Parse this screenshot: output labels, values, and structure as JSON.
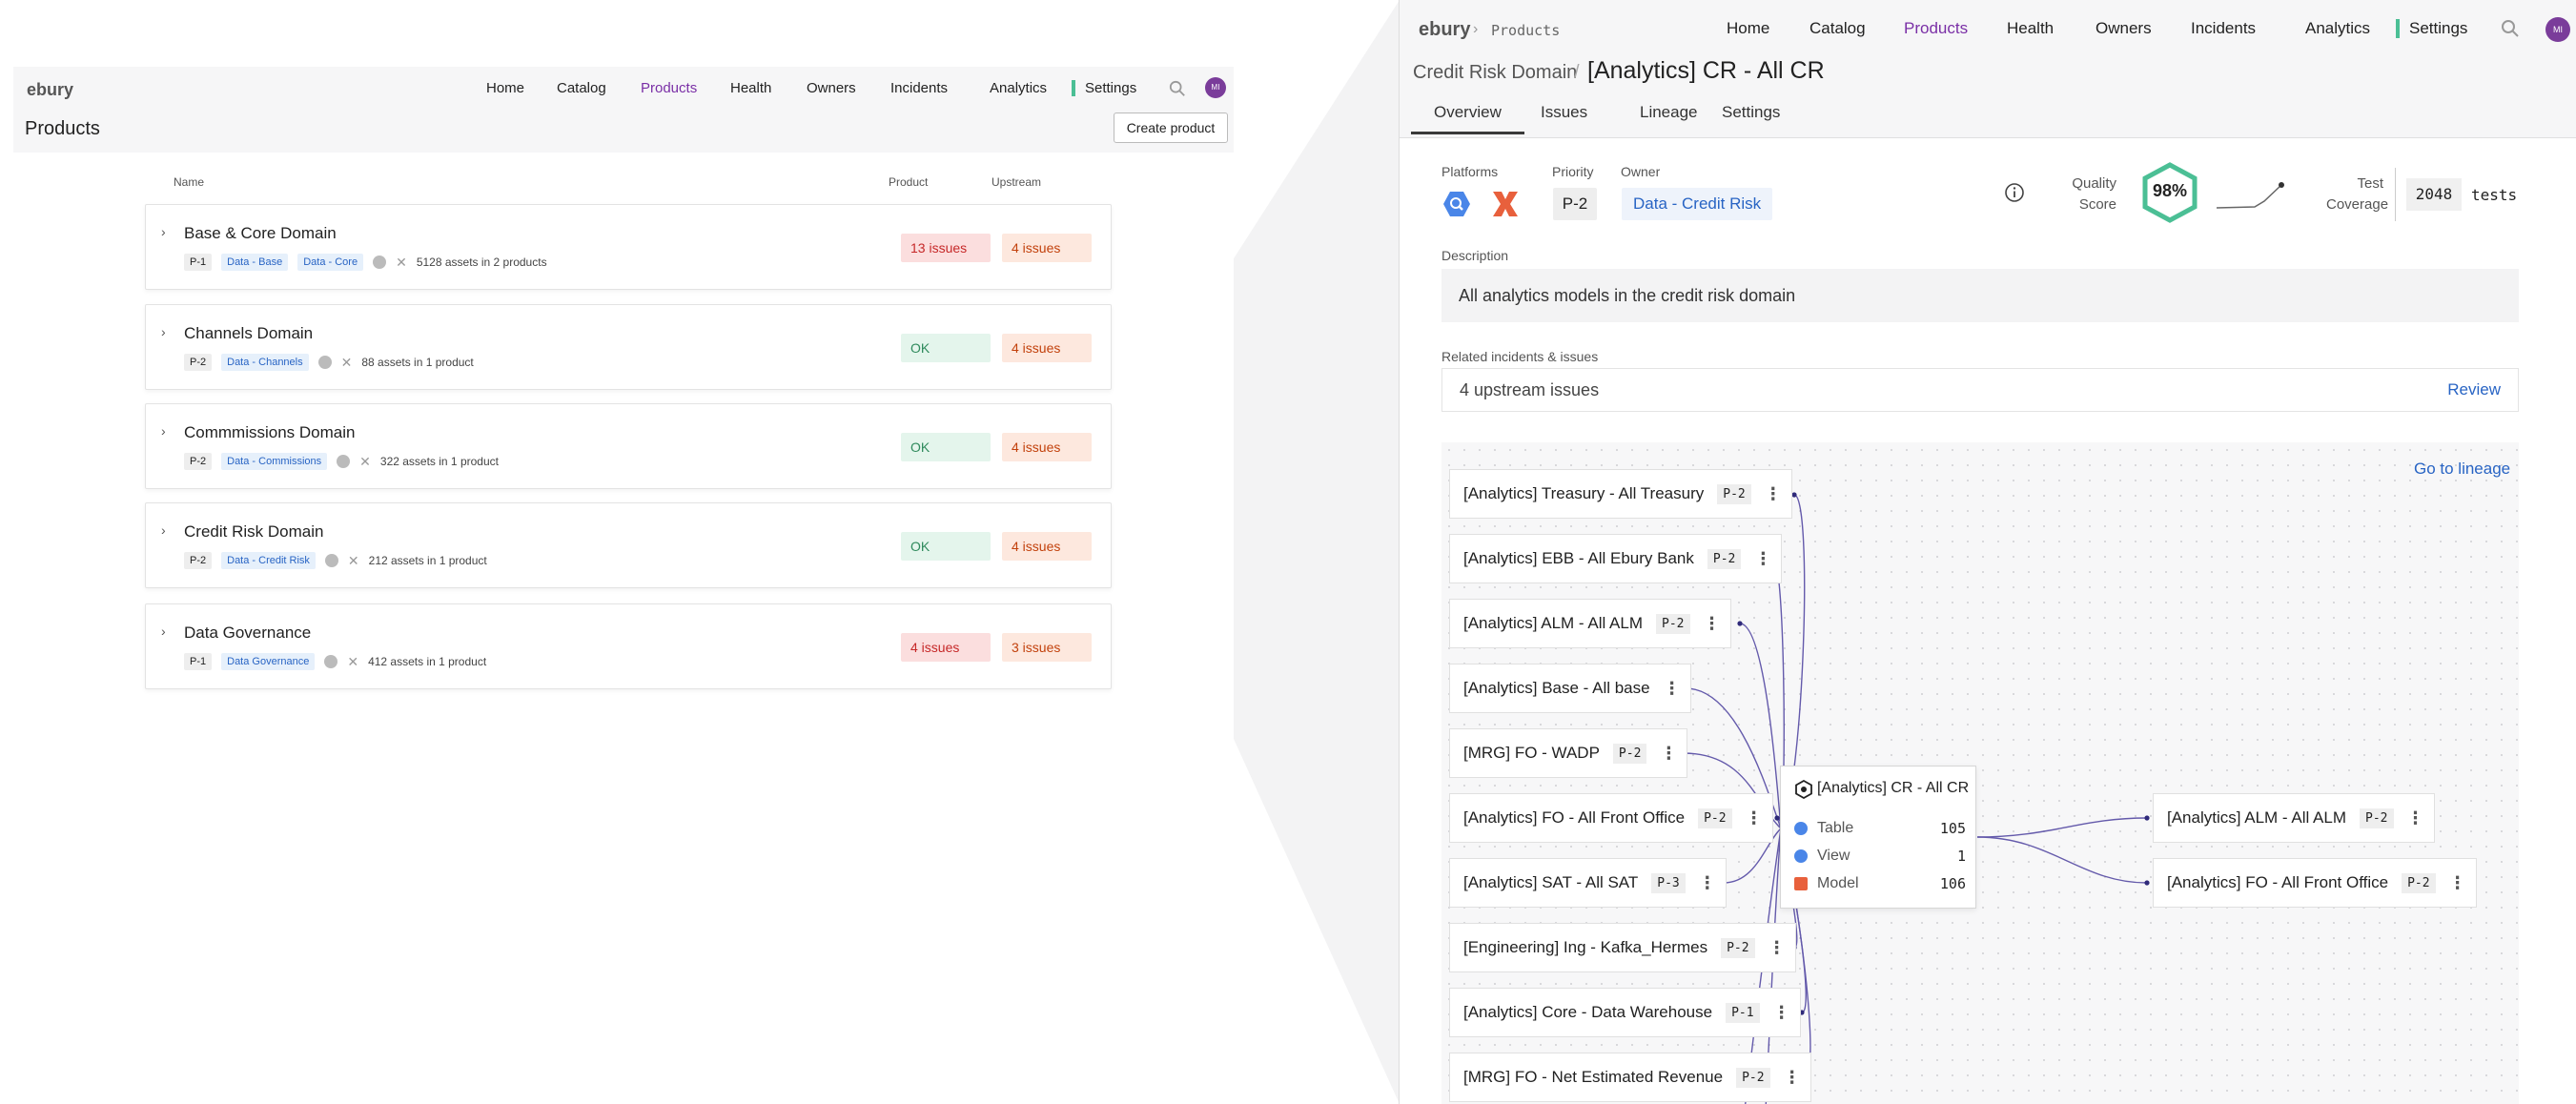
{
  "left": {
    "logo": "ebury",
    "nav": [
      {
        "label": "Home",
        "active": false
      },
      {
        "label": "Catalog",
        "active": false
      },
      {
        "label": "Products",
        "active": true
      },
      {
        "label": "Health",
        "active": false
      },
      {
        "label": "Owners",
        "active": false
      },
      {
        "label": "Incidents",
        "active": false
      },
      {
        "label": "Analytics",
        "active": false
      },
      {
        "label": "Settings",
        "active": false
      }
    ],
    "avatar": "MI",
    "page_title": "Products",
    "create_button": "Create product",
    "columns": {
      "name": "Name",
      "product": "Product",
      "upstream": "Upstream"
    },
    "products": [
      {
        "name": "Base & Core Domain",
        "priority": "P-1",
        "tags": [
          "Data - Base",
          "Data - Core"
        ],
        "assets": "5128 assets in 2 products",
        "product_status": "13 issues",
        "product_ok": false,
        "upstream": "4 issues"
      },
      {
        "name": "Channels Domain",
        "priority": "P-2",
        "tags": [
          "Data - Channels"
        ],
        "assets": "88 assets in 1 product",
        "product_status": "OK",
        "product_ok": true,
        "upstream": "4 issues"
      },
      {
        "name": "Commmissions Domain",
        "priority": "P-2",
        "tags": [
          "Data - Commissions"
        ],
        "assets": "322 assets in 1 product",
        "product_status": "OK",
        "product_ok": true,
        "upstream": "4 issues"
      },
      {
        "name": "Credit Risk Domain",
        "priority": "P-2",
        "tags": [
          "Data - Credit Risk"
        ],
        "assets": "212 assets in 1 product",
        "product_status": "OK",
        "product_ok": true,
        "upstream": "4 issues"
      },
      {
        "name": "Data Governance",
        "priority": "P-1",
        "tags": [
          "Data Governance"
        ],
        "assets": "412 assets in 1 product",
        "product_status": "4 issues",
        "product_ok": false,
        "upstream": "3 issues"
      }
    ]
  },
  "right": {
    "logo": "ebury",
    "breadcrumb": "Products",
    "nav": [
      {
        "label": "Home",
        "active": false
      },
      {
        "label": "Catalog",
        "active": false
      },
      {
        "label": "Products",
        "active": true
      },
      {
        "label": "Health",
        "active": false
      },
      {
        "label": "Owners",
        "active": false
      },
      {
        "label": "Incidents",
        "active": false
      },
      {
        "label": "Analytics",
        "active": false
      },
      {
        "label": "Settings",
        "active": false
      }
    ],
    "avatar": "MI",
    "domain_link": "Credit Risk Domain",
    "title": "[Analytics] CR - All CR",
    "tabs": [
      "Overview",
      "Issues",
      "Lineage",
      "Settings"
    ],
    "active_tab": "Overview",
    "platforms_label": "Platforms",
    "platform_icons": [
      "bigquery-icon",
      "dbt-icon"
    ],
    "priority_label": "Priority",
    "priority": "P-2",
    "owner_label": "Owner",
    "owner": "Data - Credit Risk",
    "quality_label_1": "Quality",
    "quality_label_2": "Score",
    "quality_score": "98%",
    "coverage_label_1": "Test",
    "coverage_label_2": "Coverage",
    "tests_count": "2048",
    "tests_unit": "tests",
    "description_label": "Description",
    "description": "All analytics models in the credit risk domain",
    "related_label": "Related incidents & issues",
    "related_text": "4 upstream issues",
    "review": "Review",
    "goto_lineage": "Go to lineage",
    "upstream_nodes": [
      {
        "name": "[Analytics] Treasury - All Treasury",
        "p": "P-2"
      },
      {
        "name": "[Analytics] EBB - All Ebury Bank",
        "p": "P-2"
      },
      {
        "name": "[Analytics] ALM - All ALM",
        "p": "P-2"
      },
      {
        "name": "[Analytics] Base - All base",
        "p": ""
      },
      {
        "name": "[MRG] FO - WADP",
        "p": "P-2"
      },
      {
        "name": "[Analytics] FO - All Front Office",
        "p": "P-2"
      },
      {
        "name": "[Analytics] SAT - All SAT",
        "p": "P-3"
      },
      {
        "name": "[Engineering] Ing - Kafka_Hermes",
        "p": "P-2"
      },
      {
        "name": "[Analytics] Core - Data Warehouse",
        "p": "P-1"
      },
      {
        "name": "[MRG] FO - Net Estimated Revenue",
        "p": "P-2"
      }
    ],
    "center": {
      "title": "[Analytics] CR - All CR",
      "rows": [
        {
          "label": "Table",
          "value": "105",
          "color": "#4a86e8"
        },
        {
          "label": "View",
          "value": "1",
          "color": "#4a86e8"
        },
        {
          "label": "Model",
          "value": "106",
          "color": "#e8603c"
        }
      ]
    },
    "downstream_nodes": [
      {
        "name": "[Analytics] ALM - All ALM",
        "p": "P-2"
      },
      {
        "name": "[Analytics] FO - All Front Office",
        "p": "P-2"
      }
    ]
  }
}
